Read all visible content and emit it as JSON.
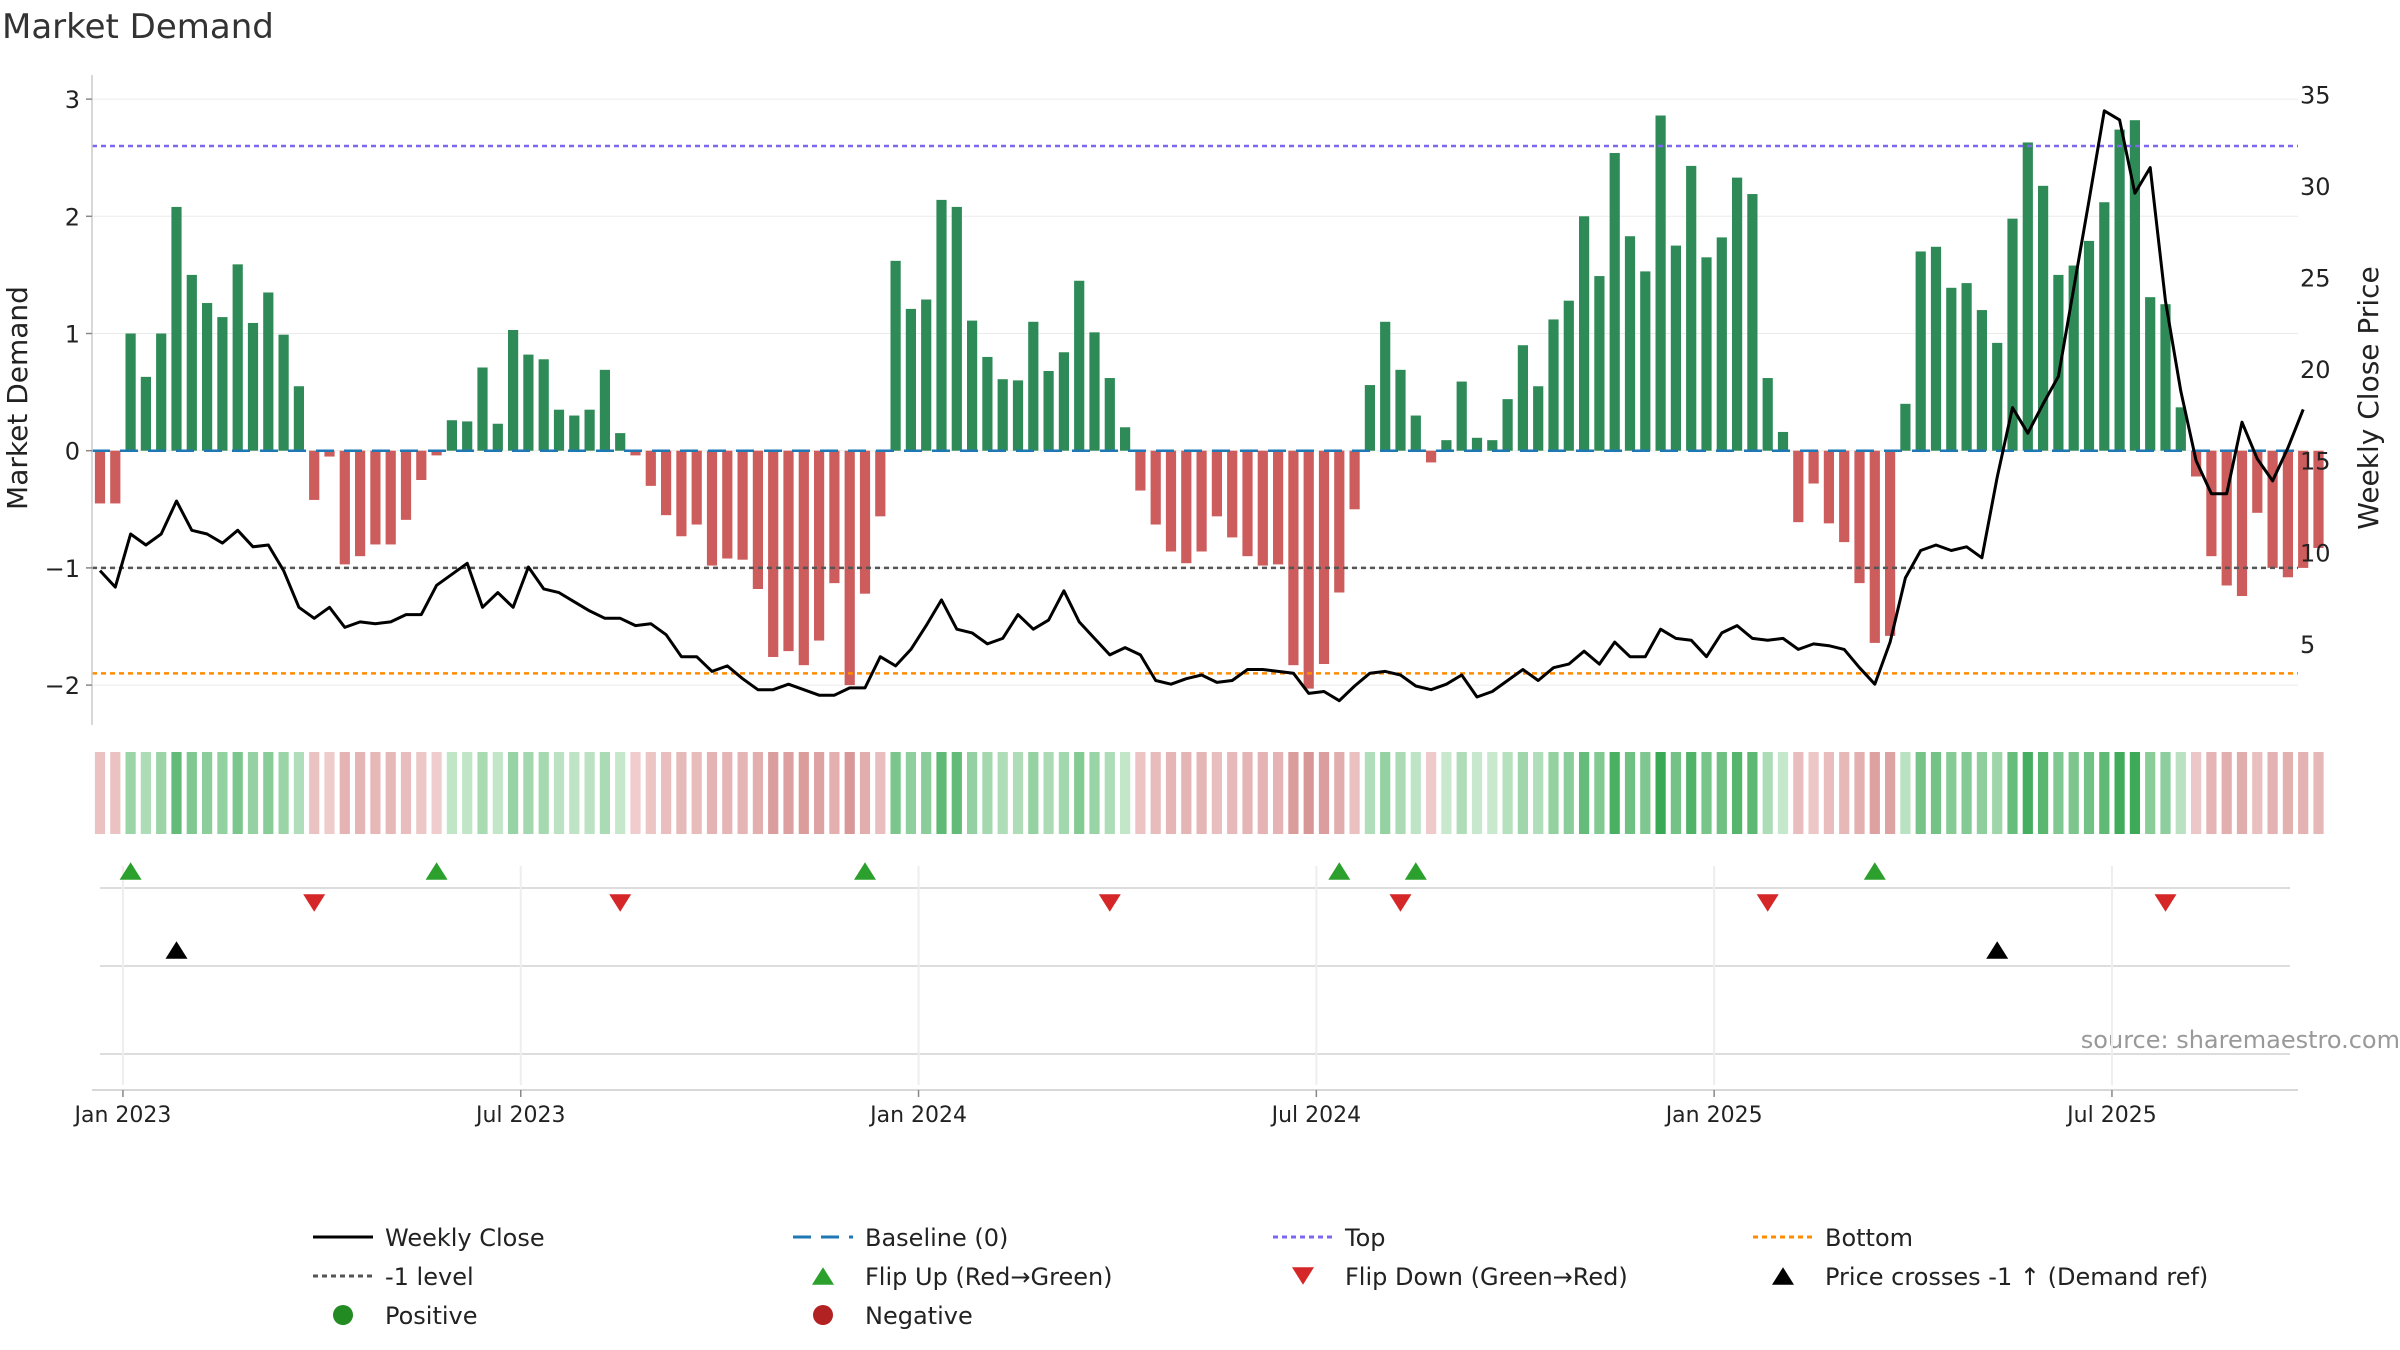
{
  "chart_data": {
    "type": "bar",
    "title": "Market Demand",
    "ylabel": "Market Demand",
    "y2label": "Weekly Close Price",
    "ylim": [
      -2.3,
      3.1
    ],
    "y2lim": [
      1,
      36.5
    ],
    "yticks": [
      3,
      2,
      1,
      0,
      -1,
      -2
    ],
    "yticklabels": [
      "3",
      "2",
      "1",
      "0",
      "−1",
      "−2"
    ],
    "y2ticks": [
      35,
      30,
      25,
      20,
      15,
      10,
      5
    ],
    "xticklabels": [
      "Jan 2023",
      "Jul 2023",
      "Jan 2024",
      "Jul 2024",
      "Jan 2025",
      "Jul 2025"
    ],
    "xtick_weeks": [
      1.5,
      27.5,
      53.5,
      79.5,
      105.5,
      131.5
    ],
    "reference_lines": {
      "top": 2.6,
      "bottom": -1.9,
      "minus_one": -1,
      "baseline": 0
    },
    "demand": [
      -0.45,
      -0.45,
      1.0,
      0.63,
      1.0,
      2.08,
      1.5,
      1.26,
      1.14,
      1.59,
      1.09,
      1.35,
      0.99,
      0.55,
      -0.42,
      -0.05,
      -0.97,
      -0.9,
      -0.8,
      -0.8,
      -0.59,
      -0.25,
      -0.04,
      0.26,
      0.25,
      0.71,
      0.23,
      1.03,
      0.82,
      0.78,
      0.35,
      0.3,
      0.35,
      0.69,
      0.15,
      -0.04,
      -0.3,
      -0.55,
      -0.73,
      -0.63,
      -0.98,
      -0.92,
      -0.93,
      -1.18,
      -1.76,
      -1.71,
      -1.83,
      -1.62,
      -1.13,
      -2.0,
      -1.22,
      -0.56,
      1.62,
      1.21,
      1.29,
      2.14,
      2.08,
      1.11,
      0.8,
      0.61,
      0.6,
      1.1,
      0.68,
      0.84,
      1.45,
      1.01,
      0.62,
      0.2,
      -0.34,
      -0.63,
      -0.86,
      -0.96,
      -0.86,
      -0.56,
      -0.74,
      -0.9,
      -0.98,
      -0.97,
      -1.83,
      -2.03,
      -1.82,
      -1.21,
      -0.5,
      0.56,
      1.1,
      0.69,
      0.3,
      -0.1,
      0.09,
      0.59,
      0.11,
      0.09,
      0.44,
      0.9,
      0.55,
      1.12,
      1.28,
      2.0,
      1.49,
      2.54,
      1.83,
      1.53,
      2.86,
      1.75,
      2.43,
      1.65,
      1.82,
      2.33,
      2.19,
      0.62,
      0.16,
      -0.61,
      -0.28,
      -0.62,
      -0.78,
      -1.13,
      -1.64,
      -1.58,
      0.4,
      1.7,
      1.74,
      1.39,
      1.43,
      1.2,
      0.92,
      1.98,
      2.63,
      2.26,
      1.5,
      1.58,
      1.79,
      2.12,
      2.74,
      2.82,
      1.31,
      1.25,
      0.37,
      -0.22,
      -0.9,
      -1.15,
      -1.24,
      -0.53,
      -1.0,
      -1.08,
      -1.0,
      -0.83
    ],
    "weekly_close": [
      9.0,
      8.1,
      11.0,
      10.4,
      11.0,
      12.8,
      11.2,
      11.0,
      10.5,
      11.2,
      10.3,
      10.4,
      9.0,
      7.0,
      6.4,
      7.0,
      5.9,
      6.2,
      6.1,
      6.2,
      6.6,
      6.6,
      8.2,
      8.8,
      9.4,
      7.0,
      7.8,
      7.0,
      9.2,
      8.0,
      7.8,
      7.3,
      6.8,
      6.4,
      6.4,
      6.0,
      6.1,
      5.5,
      4.3,
      4.3,
      3.5,
      3.8,
      3.1,
      2.5,
      2.5,
      2.8,
      2.5,
      2.2,
      2.2,
      2.6,
      2.6,
      4.3,
      3.8,
      4.7,
      6.0,
      7.4,
      5.8,
      5.6,
      5.0,
      5.3,
      6.6,
      5.8,
      6.3,
      7.9,
      6.2,
      5.3,
      4.4,
      4.8,
      4.4,
      3.0,
      2.8,
      3.1,
      3.3,
      2.9,
      3.0,
      3.6,
      3.6,
      3.5,
      3.4,
      2.3,
      2.4,
      1.9,
      2.7,
      3.4,
      3.5,
      3.3,
      2.7,
      2.5,
      2.8,
      3.3,
      2.1,
      2.4,
      3.0,
      3.6,
      3.0,
      3.7,
      3.9,
      4.6,
      3.9,
      5.1,
      4.3,
      4.3,
      5.8,
      5.3,
      5.2,
      4.3,
      5.6,
      6.0,
      5.3,
      5.2,
      5.3,
      4.7,
      5.0,
      4.9,
      4.7,
      3.7,
      2.8,
      5.1,
      8.6,
      10.1,
      10.4,
      10.1,
      10.3,
      9.7,
      14.1,
      17.9,
      16.5,
      18.1,
      19.6,
      24.4,
      29.2,
      34.1,
      33.6,
      29.6,
      31.0,
      23.7,
      18.8,
      15.0,
      13.2,
      13.2,
      17.1,
      15.1,
      13.9,
      15.7,
      17.8
    ],
    "flip_up_weeks": [
      2,
      22,
      50,
      81,
      86,
      116
    ],
    "flip_down_weeks": [
      14,
      34,
      66,
      85,
      109,
      135
    ],
    "price_cross_weeks": [
      5,
      124
    ],
    "colors": {
      "positive_bar": "#2e8b57",
      "negative_bar": "#cd5c5c",
      "weekly_close": "#000000",
      "baseline": "#1f77b4",
      "top": "#7b68ee",
      "bottom": "#ff8c00",
      "minus_one": "#555555",
      "flip_up": "#2ca02c",
      "flip_down": "#d62728",
      "price_cross": "#000000",
      "positive_dot": "#228b22",
      "negative_dot": "#b22222"
    },
    "legend": [
      {
        "label": "Weekly Close",
        "kind": "line",
        "color": "#000000",
        "dash": ""
      },
      {
        "label": "Baseline (0)",
        "kind": "line",
        "color": "#1f77b4",
        "dash": "18 10"
      },
      {
        "label": "Top",
        "kind": "line",
        "color": "#7b68ee",
        "dash": "5 4"
      },
      {
        "label": "Bottom",
        "kind": "line",
        "color": "#ff8c00",
        "dash": "5 4"
      },
      {
        "label": "-1 level",
        "kind": "line",
        "color": "#555555",
        "dash": "5 4"
      },
      {
        "label": "Flip Up (Red→Green)",
        "kind": "tri-up",
        "color": "#2ca02c"
      },
      {
        "label": "Flip Down (Green→Red)",
        "kind": "tri-down",
        "color": "#d62728"
      },
      {
        "label": "Price crosses -1 ↑ (Demand ref)",
        "kind": "tri-up",
        "color": "#000000"
      },
      {
        "label": "Positive",
        "kind": "dot",
        "color": "#228b22"
      },
      {
        "label": "Negative",
        "kind": "dot",
        "color": "#b22222"
      }
    ],
    "source": "source: sharemaestro.com"
  }
}
